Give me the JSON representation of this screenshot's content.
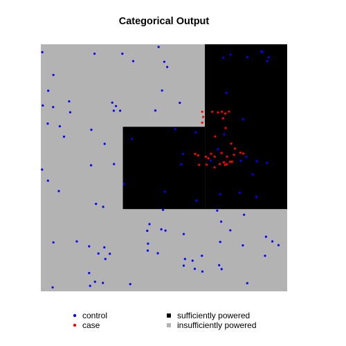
{
  "chart_data": {
    "type": "scatter",
    "title": "Categorical Output",
    "xlabel": "",
    "ylabel": "",
    "xlim": [
      0,
      1
    ],
    "ylim": [
      0,
      1
    ],
    "grid": false,
    "legend_placement": "bottom",
    "regions": [
      {
        "name": "sufficiently powered",
        "color": "#000000",
        "rects": [
          [
            0.666,
            0.333,
            1.0,
            1.0
          ],
          [
            0.333,
            0.333,
            0.666,
            0.666
          ]
        ]
      }
    ],
    "background_region": {
      "name": "insufficiently powered",
      "color": "#b3b3b3"
    },
    "legend": {
      "points": [
        {
          "label": "control",
          "color": "#0000ff"
        },
        {
          "label": "case",
          "color": "#ff0000"
        }
      ],
      "regions": [
        {
          "label": "sufficiently powered",
          "color": "#000000"
        },
        {
          "label": "insufficiently powered",
          "color": "#b3b3b3"
        }
      ]
    },
    "series": [
      {
        "name": "control",
        "color": "#0000ff",
        "points": [
          [
            0.006,
            0.968
          ],
          [
            0.218,
            0.962
          ],
          [
            0.331,
            0.962
          ],
          [
            0.478,
            0.989
          ],
          [
            0.501,
            0.929
          ],
          [
            0.375,
            0.932
          ],
          [
            0.051,
            0.876
          ],
          [
            0.513,
            0.908
          ],
          [
            0.9,
            0.969
          ],
          [
            0.895,
            0.971
          ],
          [
            0.925,
            0.948
          ],
          [
            0.77,
            0.958
          ],
          [
            0.741,
            0.946
          ],
          [
            0.838,
            0.948
          ],
          [
            0.919,
            0.932
          ],
          [
            0.03,
            0.812
          ],
          [
            0.492,
            0.813
          ],
          [
            0.753,
            0.803
          ],
          [
            0.115,
            0.769
          ],
          [
            0.29,
            0.764
          ],
          [
            0.008,
            0.752
          ],
          [
            0.05,
            0.746
          ],
          [
            0.119,
            0.725
          ],
          [
            0.305,
            0.75
          ],
          [
            0.296,
            0.731
          ],
          [
            0.322,
            0.731
          ],
          [
            0.465,
            0.732
          ],
          [
            0.564,
            0.763
          ],
          [
            0.821,
            0.696
          ],
          [
            0.028,
            0.679
          ],
          [
            0.077,
            0.668
          ],
          [
            0.205,
            0.654
          ],
          [
            0.094,
            0.626
          ],
          [
            0.259,
            0.597
          ],
          [
            0.37,
            0.617
          ],
          [
            0.545,
            0.657
          ],
          [
            0.629,
            0.643
          ],
          [
            0.745,
            0.635
          ],
          [
            0.719,
            0.576
          ],
          [
            0.005,
            0.493
          ],
          [
            0.029,
            0.448
          ],
          [
            0.204,
            0.51
          ],
          [
            0.297,
            0.515
          ],
          [
            0.577,
            0.556
          ],
          [
            0.69,
            0.529
          ],
          [
            0.57,
            0.514
          ],
          [
            0.812,
            0.528
          ],
          [
            0.834,
            0.544
          ],
          [
            0.877,
            0.527
          ],
          [
            0.918,
            0.52
          ],
          [
            0.86,
            0.473
          ],
          [
            0.073,
            0.406
          ],
          [
            0.337,
            0.435
          ],
          [
            0.503,
            0.403
          ],
          [
            0.728,
            0.393
          ],
          [
            0.632,
            0.368
          ],
          [
            0.808,
            0.399
          ],
          [
            0.875,
            0.382
          ],
          [
            0.224,
            0.354
          ],
          [
            0.253,
            0.342
          ],
          [
            0.496,
            0.33
          ],
          [
            0.716,
            0.327
          ],
          [
            0.732,
            0.282
          ],
          [
            0.825,
            0.31
          ],
          [
            0.441,
            0.272
          ],
          [
            0.489,
            0.251
          ],
          [
            0.506,
            0.246
          ],
          [
            0.58,
            0.232
          ],
          [
            0.728,
            0.2
          ],
          [
            0.769,
            0.247
          ],
          [
            0.051,
            0.198
          ],
          [
            0.146,
            0.202
          ],
          [
            0.196,
            0.182
          ],
          [
            0.258,
            0.178
          ],
          [
            0.432,
            0.245
          ],
          [
            0.435,
            0.193
          ],
          [
            0.475,
            0.154
          ],
          [
            0.82,
            0.186
          ],
          [
            0.914,
            0.221
          ],
          [
            0.94,
            0.202
          ],
          [
            0.234,
            0.153
          ],
          [
            0.262,
            0.131
          ],
          [
            0.28,
            0.152
          ],
          [
            0.434,
            0.165
          ],
          [
            0.585,
            0.131
          ],
          [
            0.58,
            0.104
          ],
          [
            0.654,
            0.144
          ],
          [
            0.616,
            0.124
          ],
          [
            0.724,
            0.106
          ],
          [
            0.91,
            0.144
          ],
          [
            0.965,
            0.187
          ],
          [
            0.196,
            0.074
          ],
          [
            0.22,
            0.039
          ],
          [
            0.2,
            0.022
          ],
          [
            0.252,
            0.034
          ],
          [
            0.363,
            0.029
          ],
          [
            0.625,
            0.091
          ],
          [
            0.656,
            0.08
          ],
          [
            0.734,
            0.09
          ],
          [
            0.838,
            0.033
          ],
          [
            0.048,
            0.016
          ]
        ]
      },
      {
        "name": "case",
        "color": "#ff0000",
        "points": [
          [
            0.655,
            0.727
          ],
          [
            0.659,
            0.706
          ],
          [
            0.696,
            0.727
          ],
          [
            0.719,
            0.724
          ],
          [
            0.735,
            0.727
          ],
          [
            0.749,
            0.72
          ],
          [
            0.764,
            0.728
          ],
          [
            0.74,
            0.7
          ],
          [
            0.655,
            0.683
          ],
          [
            0.75,
            0.661
          ],
          [
            0.708,
            0.627
          ],
          [
            0.773,
            0.598
          ],
          [
            0.788,
            0.578
          ],
          [
            0.734,
            0.56
          ],
          [
            0.756,
            0.545
          ],
          [
            0.784,
            0.553
          ],
          [
            0.81,
            0.561
          ],
          [
            0.822,
            0.558
          ],
          [
            0.626,
            0.556
          ],
          [
            0.639,
            0.55
          ],
          [
            0.67,
            0.545
          ],
          [
            0.68,
            0.538
          ],
          [
            0.691,
            0.557
          ],
          [
            0.642,
            0.512
          ],
          [
            0.673,
            0.513
          ],
          [
            0.726,
            0.515
          ],
          [
            0.776,
            0.525
          ],
          [
            0.743,
            0.522
          ],
          [
            0.706,
            0.545
          ],
          [
            0.755,
            0.515
          ],
          [
            0.705,
            0.502
          ],
          [
            0.748,
            0.512
          ],
          [
            0.768,
            0.524
          ]
        ]
      }
    ]
  }
}
